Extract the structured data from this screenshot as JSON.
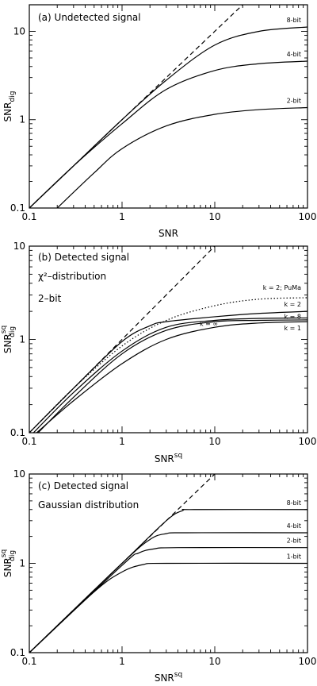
{
  "chart_data": [
    {
      "type": "line",
      "panel_label": "(a)",
      "title": "Undetected signal",
      "notes": [],
      "xlabel": "SNR",
      "ylabel": "SNR",
      "ylabel_sub": "dig",
      "ylabel_sup": "",
      "xscale": "log",
      "yscale": "log",
      "xlim": [
        0.1,
        100
      ],
      "ylim": [
        0.1,
        20
      ],
      "xticklabels": [
        "0.1",
        "1",
        "10",
        "100"
      ],
      "yticklabels": [
        "0.1",
        "1",
        "10"
      ],
      "series": [
        {
          "name": "",
          "style": "dashed",
          "x": [
            0.1,
            1,
            10,
            20
          ],
          "y": [
            0.1,
            1,
            10,
            20
          ]
        },
        {
          "name": "8-bit",
          "style": "solid",
          "x": [
            0.1,
            0.3,
            1,
            3,
            10,
            30,
            100
          ],
          "y": [
            0.1,
            0.3,
            1.0,
            2.8,
            7.0,
            10.0,
            11.2
          ]
        },
        {
          "name": "4-bit",
          "style": "solid",
          "x": [
            0.1,
            0.3,
            1,
            3,
            10,
            30,
            100
          ],
          "y": [
            0.1,
            0.3,
            0.9,
            2.2,
            3.6,
            4.3,
            4.6
          ]
        },
        {
          "name": "2-bit",
          "style": "solid",
          "x": [
            0.2,
            0.5,
            1,
            3,
            10,
            30,
            100
          ],
          "y": [
            0.1,
            0.25,
            0.47,
            0.85,
            1.15,
            1.3,
            1.37
          ]
        }
      ]
    },
    {
      "type": "line",
      "panel_label": "(b)",
      "title": "Detected signal",
      "notes": [
        "χ²–distribution",
        "2–bit"
      ],
      "xlabel": "SNR",
      "xlabel_sup": "sq",
      "ylabel": "SNR",
      "ylabel_sub": "dig",
      "ylabel_sup": "sq",
      "xscale": "log",
      "yscale": "log",
      "xlim": [
        0.1,
        100
      ],
      "ylim": [
        0.1,
        10
      ],
      "xticklabels": [
        "0.1",
        "1",
        "10",
        "100"
      ],
      "yticklabels": [
        "0.1",
        "1",
        "10"
      ],
      "series": [
        {
          "name": "",
          "style": "dashed",
          "x": [
            0.1,
            1,
            10
          ],
          "y": [
            0.1,
            1,
            10
          ]
        },
        {
          "name": "k = 2; PuMa",
          "style": "dotted",
          "x": [
            0.1,
            0.3,
            1,
            3,
            10,
            30,
            100
          ],
          "y": [
            0.1,
            0.3,
            0.85,
            1.6,
            2.3,
            2.7,
            2.8
          ]
        },
        {
          "name": "k = 2",
          "style": "solid",
          "x": [
            0.1,
            0.3,
            1,
            2,
            3,
            10,
            30,
            100
          ],
          "y": [
            0.1,
            0.3,
            0.95,
            1.4,
            1.55,
            1.75,
            1.9,
            2.0
          ]
        },
        {
          "name": "k = 8",
          "style": "solid",
          "x": [
            0.1,
            0.3,
            1,
            3,
            10,
            30,
            100
          ],
          "y": [
            0.09,
            0.27,
            0.75,
            1.35,
            1.6,
            1.68,
            1.7
          ]
        },
        {
          "name": "k = ∞",
          "style": "solid",
          "x": [
            0.1,
            0.3,
            1,
            3,
            10,
            30,
            100
          ],
          "y": [
            0.08,
            0.24,
            0.7,
            1.25,
            1.55,
            1.6,
            1.62
          ]
        },
        {
          "name": "k = 1",
          "style": "solid",
          "x": [
            0.12,
            0.3,
            1,
            3,
            10,
            30,
            100
          ],
          "y": [
            0.1,
            0.22,
            0.55,
            1.0,
            1.35,
            1.5,
            1.55
          ]
        }
      ]
    },
    {
      "type": "line",
      "panel_label": "(c)",
      "title": "Detected signal",
      "notes": [
        "Gaussian distribution"
      ],
      "xlabel": "SNR",
      "xlabel_sup": "sq",
      "ylabel": "SNR",
      "ylabel_sub": "dig",
      "ylabel_sup": "sq",
      "xscale": "log",
      "yscale": "log",
      "xlim": [
        0.1,
        100
      ],
      "ylim": [
        0.1,
        10
      ],
      "xticklabels": [
        "0.1",
        "1",
        "10",
        "100"
      ],
      "yticklabels": [
        "0.1",
        "1",
        "10"
      ],
      "series": [
        {
          "name": "",
          "style": "dashed",
          "x": [
            0.1,
            1,
            10
          ],
          "y": [
            0.1,
            1,
            10
          ]
        },
        {
          "name": "8-bit",
          "style": "solid",
          "x": [
            0.1,
            1,
            3,
            4.5,
            6,
            100
          ],
          "y": [
            0.1,
            1,
            3,
            3.9,
            4.0,
            4.0
          ]
        },
        {
          "name": "4-bit",
          "style": "solid",
          "x": [
            0.1,
            1,
            2,
            3,
            5,
            100
          ],
          "y": [
            0.1,
            1,
            1.85,
            2.15,
            2.2,
            2.2
          ]
        },
        {
          "name": "2-bit",
          "style": "solid",
          "x": [
            0.1,
            1,
            1.5,
            2.2,
            4,
            100
          ],
          "y": [
            0.1,
            0.95,
            1.3,
            1.45,
            1.5,
            1.5
          ]
        },
        {
          "name": "1-bit",
          "style": "solid",
          "x": [
            0.1,
            0.5,
            1,
            1.7,
            3,
            100
          ],
          "y": [
            0.1,
            0.48,
            0.8,
            0.97,
            1.0,
            1.0
          ]
        }
      ]
    }
  ]
}
